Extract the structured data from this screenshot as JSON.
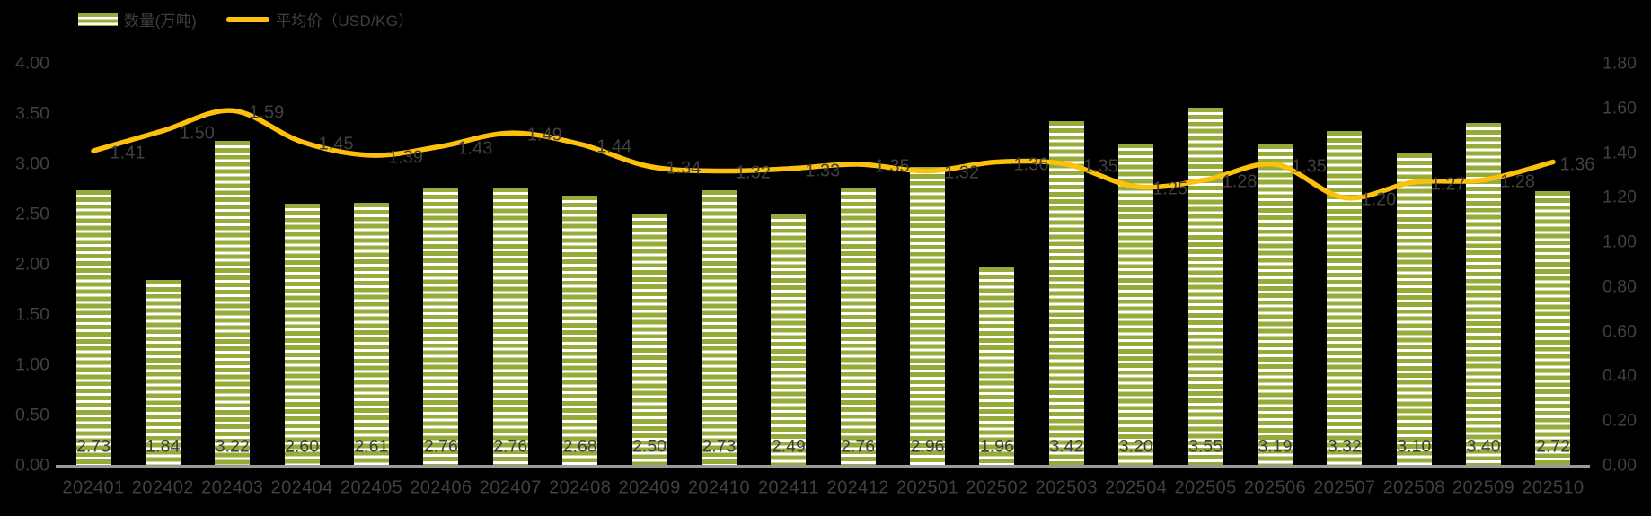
{
  "colors": {
    "background": "#000000",
    "bar_fill": "#95AC3A",
    "bar_stripe": "#FFFFFF",
    "line": "#FDC00D",
    "text": "#404040",
    "axis_line": "#9A9A9A"
  },
  "legend": {
    "position": "top-left",
    "items": [
      {
        "label": "数量(万吨)",
        "swatch": "striped-bar"
      },
      {
        "label": "平均价（USD/KG）",
        "swatch": "line"
      }
    ]
  },
  "chart_data": {
    "type": "bar",
    "combo": "bar+line",
    "title": "",
    "grid": false,
    "legend_position": "top-left",
    "categories": [
      "202401",
      "202402",
      "202403",
      "202404",
      "202405",
      "202406",
      "202407",
      "202408",
      "202409",
      "202410",
      "202411",
      "202412",
      "202501",
      "202502",
      "202503",
      "202504",
      "202505",
      "202506",
      "202507",
      "202508",
      "202509",
      "202510"
    ],
    "series": [
      {
        "name": "数量(万吨)",
        "render": "bar",
        "axis": "left",
        "values": [
          2.73,
          1.84,
          3.22,
          2.6,
          2.61,
          2.76,
          2.76,
          2.68,
          2.5,
          2.73,
          2.49,
          2.76,
          2.96,
          1.96,
          3.42,
          3.2,
          3.55,
          3.19,
          3.32,
          3.1,
          3.4,
          2.72
        ],
        "labels": [
          "2.73",
          "1.84",
          "3.22",
          "2.60",
          "2.61",
          "2.76",
          "2.76",
          "2.68",
          "2.50",
          "2.73",
          "2.49",
          "2.76",
          "2.96",
          "1.96",
          "3.42",
          "3.20",
          "3.55",
          "3.19",
          "3.32",
          "3.10",
          "3.40",
          "2.72"
        ]
      },
      {
        "name": "平均价（USD/KG）",
        "render": "line",
        "axis": "right",
        "values": [
          1.41,
          1.5,
          1.59,
          1.45,
          1.39,
          1.43,
          1.49,
          1.44,
          1.34,
          1.32,
          1.33,
          1.35,
          1.32,
          1.36,
          1.35,
          1.25,
          1.28,
          1.35,
          1.2,
          1.27,
          1.28,
          1.36
        ],
        "labels": [
          "1.41",
          "1.50",
          "1.59",
          "1.45",
          "1.39",
          "1.43",
          "1.49",
          "1.44",
          "1.34",
          "1.32",
          "1.33",
          "1.35",
          "1.32",
          "1.36",
          "1.35",
          "1.25",
          "1.28",
          "1.35",
          "1.20",
          "1.27",
          "1.28",
          "1.36"
        ]
      }
    ],
    "left_axis": {
      "min": 0,
      "max": 4.0,
      "step": 0.5,
      "tick_labels": [
        "4.00",
        "3.50",
        "3.00",
        "2.50",
        "2.00",
        "1.50",
        "1.00",
        "0.50",
        "0.00"
      ]
    },
    "right_axis": {
      "min": 0,
      "max": 1.8,
      "step": 0.2,
      "tick_labels": [
        "1.80",
        "1.60",
        "1.40",
        "1.20",
        "1.00",
        "0.80",
        "0.60",
        "0.40",
        "0.20",
        "0.00"
      ]
    }
  }
}
